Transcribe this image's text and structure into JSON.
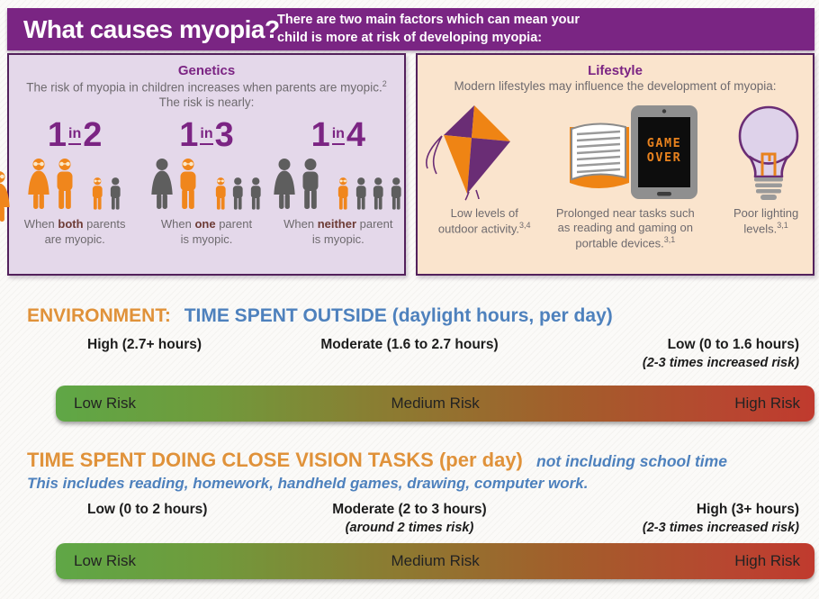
{
  "header": {
    "title": "What causes myopia?",
    "subtitle_line1": "There are two main factors which can mean your",
    "subtitle_line2": "child is more at risk of developing myopia:"
  },
  "genetics": {
    "title": "Genetics",
    "desc_main": "The risk of myopia in children increases when parents are myopic.",
    "desc_sup": "2",
    "desc_line2": "The risk is nearly:",
    "stats": [
      {
        "num1": "1",
        "mid": "in",
        "num2": "2",
        "cap_pre": "When ",
        "cap_bold": "both",
        "cap_post": " parents",
        "cap_line2": "are myopic.",
        "figures": [
          {
            "type": "adult-female",
            "color": "orange",
            "glasses": true
          },
          {
            "type": "adult-male",
            "color": "orange",
            "glasses": true
          },
          {
            "type": "child",
            "color": "orange",
            "glasses": true,
            "gap": true
          },
          {
            "type": "child",
            "color": "gray",
            "glasses": false
          }
        ]
      },
      {
        "num1": "1",
        "mid": "in",
        "num2": "3",
        "cap_pre": "When ",
        "cap_bold": "one",
        "cap_post": " parent",
        "cap_line2": "is myopic.",
        "figures": [
          {
            "type": "adult-female",
            "color": "gray",
            "glasses": false
          },
          {
            "type": "adult-male",
            "color": "orange",
            "glasses": true
          },
          {
            "type": "child",
            "color": "orange",
            "glasses": true,
            "gap": true
          },
          {
            "type": "child",
            "color": "gray",
            "glasses": false
          },
          {
            "type": "child",
            "color": "gray",
            "glasses": false
          }
        ]
      },
      {
        "num1": "1",
        "mid": "in",
        "num2": "4",
        "cap_pre": "When ",
        "cap_bold": "neither",
        "cap_post": " parent",
        "cap_line2": "is myopic.",
        "figures": [
          {
            "type": "adult-female",
            "color": "gray",
            "glasses": false
          },
          {
            "type": "adult-male",
            "color": "gray",
            "glasses": false
          },
          {
            "type": "child",
            "color": "orange",
            "glasses": true,
            "gap": true
          },
          {
            "type": "child",
            "color": "gray",
            "glasses": false
          },
          {
            "type": "child",
            "color": "gray",
            "glasses": false
          },
          {
            "type": "child",
            "color": "gray",
            "glasses": false
          }
        ]
      }
    ]
  },
  "edge_figure": [
    {
      "type": "adult-female",
      "color": "orange",
      "glasses": true
    }
  ],
  "lifestyle": {
    "title": "Lifestyle",
    "desc": "Modern lifestyles may influence the development of myopia:",
    "tablet_screen_line1": "GAME",
    "tablet_screen_line2": "OVER",
    "items": [
      {
        "cap_main": "Low levels of outdoor activity.",
        "cap_sup": "3,4"
      },
      {
        "cap_main": "Prolonged near tasks such as reading and gaming on portable devices.",
        "cap_sup": "3,1"
      },
      {
        "cap_main": "Poor lighting levels.",
        "cap_sup": "3,1"
      }
    ]
  },
  "outside_section": {
    "heading_orange": "ENVIRONMENT:",
    "heading_blue": "TIME SPENT OUTSIDE (daylight hours, per day)",
    "label_left": "High (2.7+ hours)",
    "label_mid": "Moderate (1.6 to 2.7 hours)",
    "label_mid_sub": "",
    "label_right": "Low (0 to 1.6 hours)",
    "label_right_sub": "(2-3 times increased risk)",
    "bar": {
      "left": "Low Risk",
      "mid": "Medium Risk",
      "right": "High Risk"
    }
  },
  "close_section": {
    "heading_orange": "TIME SPENT DOING CLOSE VISION TASKS (per day)",
    "heading_blue": "not including school time",
    "subheading": "This includes reading, homework, handheld games, drawing, computer work.",
    "label_left": "Low (0 to 2 hours)",
    "label_mid": "Moderate (2 to 3 hours)",
    "label_mid_sub": "(around 2 times risk)",
    "label_right": "High (3+ hours)",
    "label_right_sub": "(2-3 times increased risk)",
    "bar": {
      "left": "Low Risk",
      "mid": "Medium Risk",
      "right": "High Risk"
    }
  },
  "colors": {
    "header_purple": "#7a2583",
    "panel_border": "#53215c",
    "genetics_bg": "#e4d8ea",
    "lifestyle_bg": "#fae4cd",
    "figure_orange": "#f0861c",
    "figure_gray": "#5e5e5e",
    "heading_orange": "#e0923a",
    "heading_blue": "#4e81bd",
    "bar_green": "#5fa746",
    "bar_red": "#c03a2e"
  }
}
